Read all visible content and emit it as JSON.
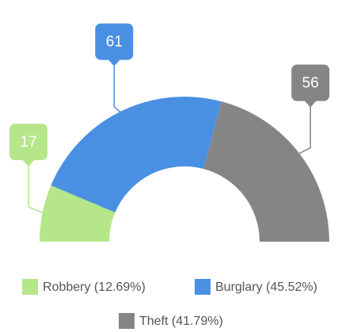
{
  "chart_data": {
    "type": "semi-donut",
    "categories": [
      "Robbery (12.69%)",
      "Burglary (45.52%)",
      "Theft (41.79%)"
    ],
    "values": [
      17,
      61,
      56
    ],
    "colors": [
      "#b5e68a",
      "#4a90e2",
      "#858585"
    ]
  }
}
